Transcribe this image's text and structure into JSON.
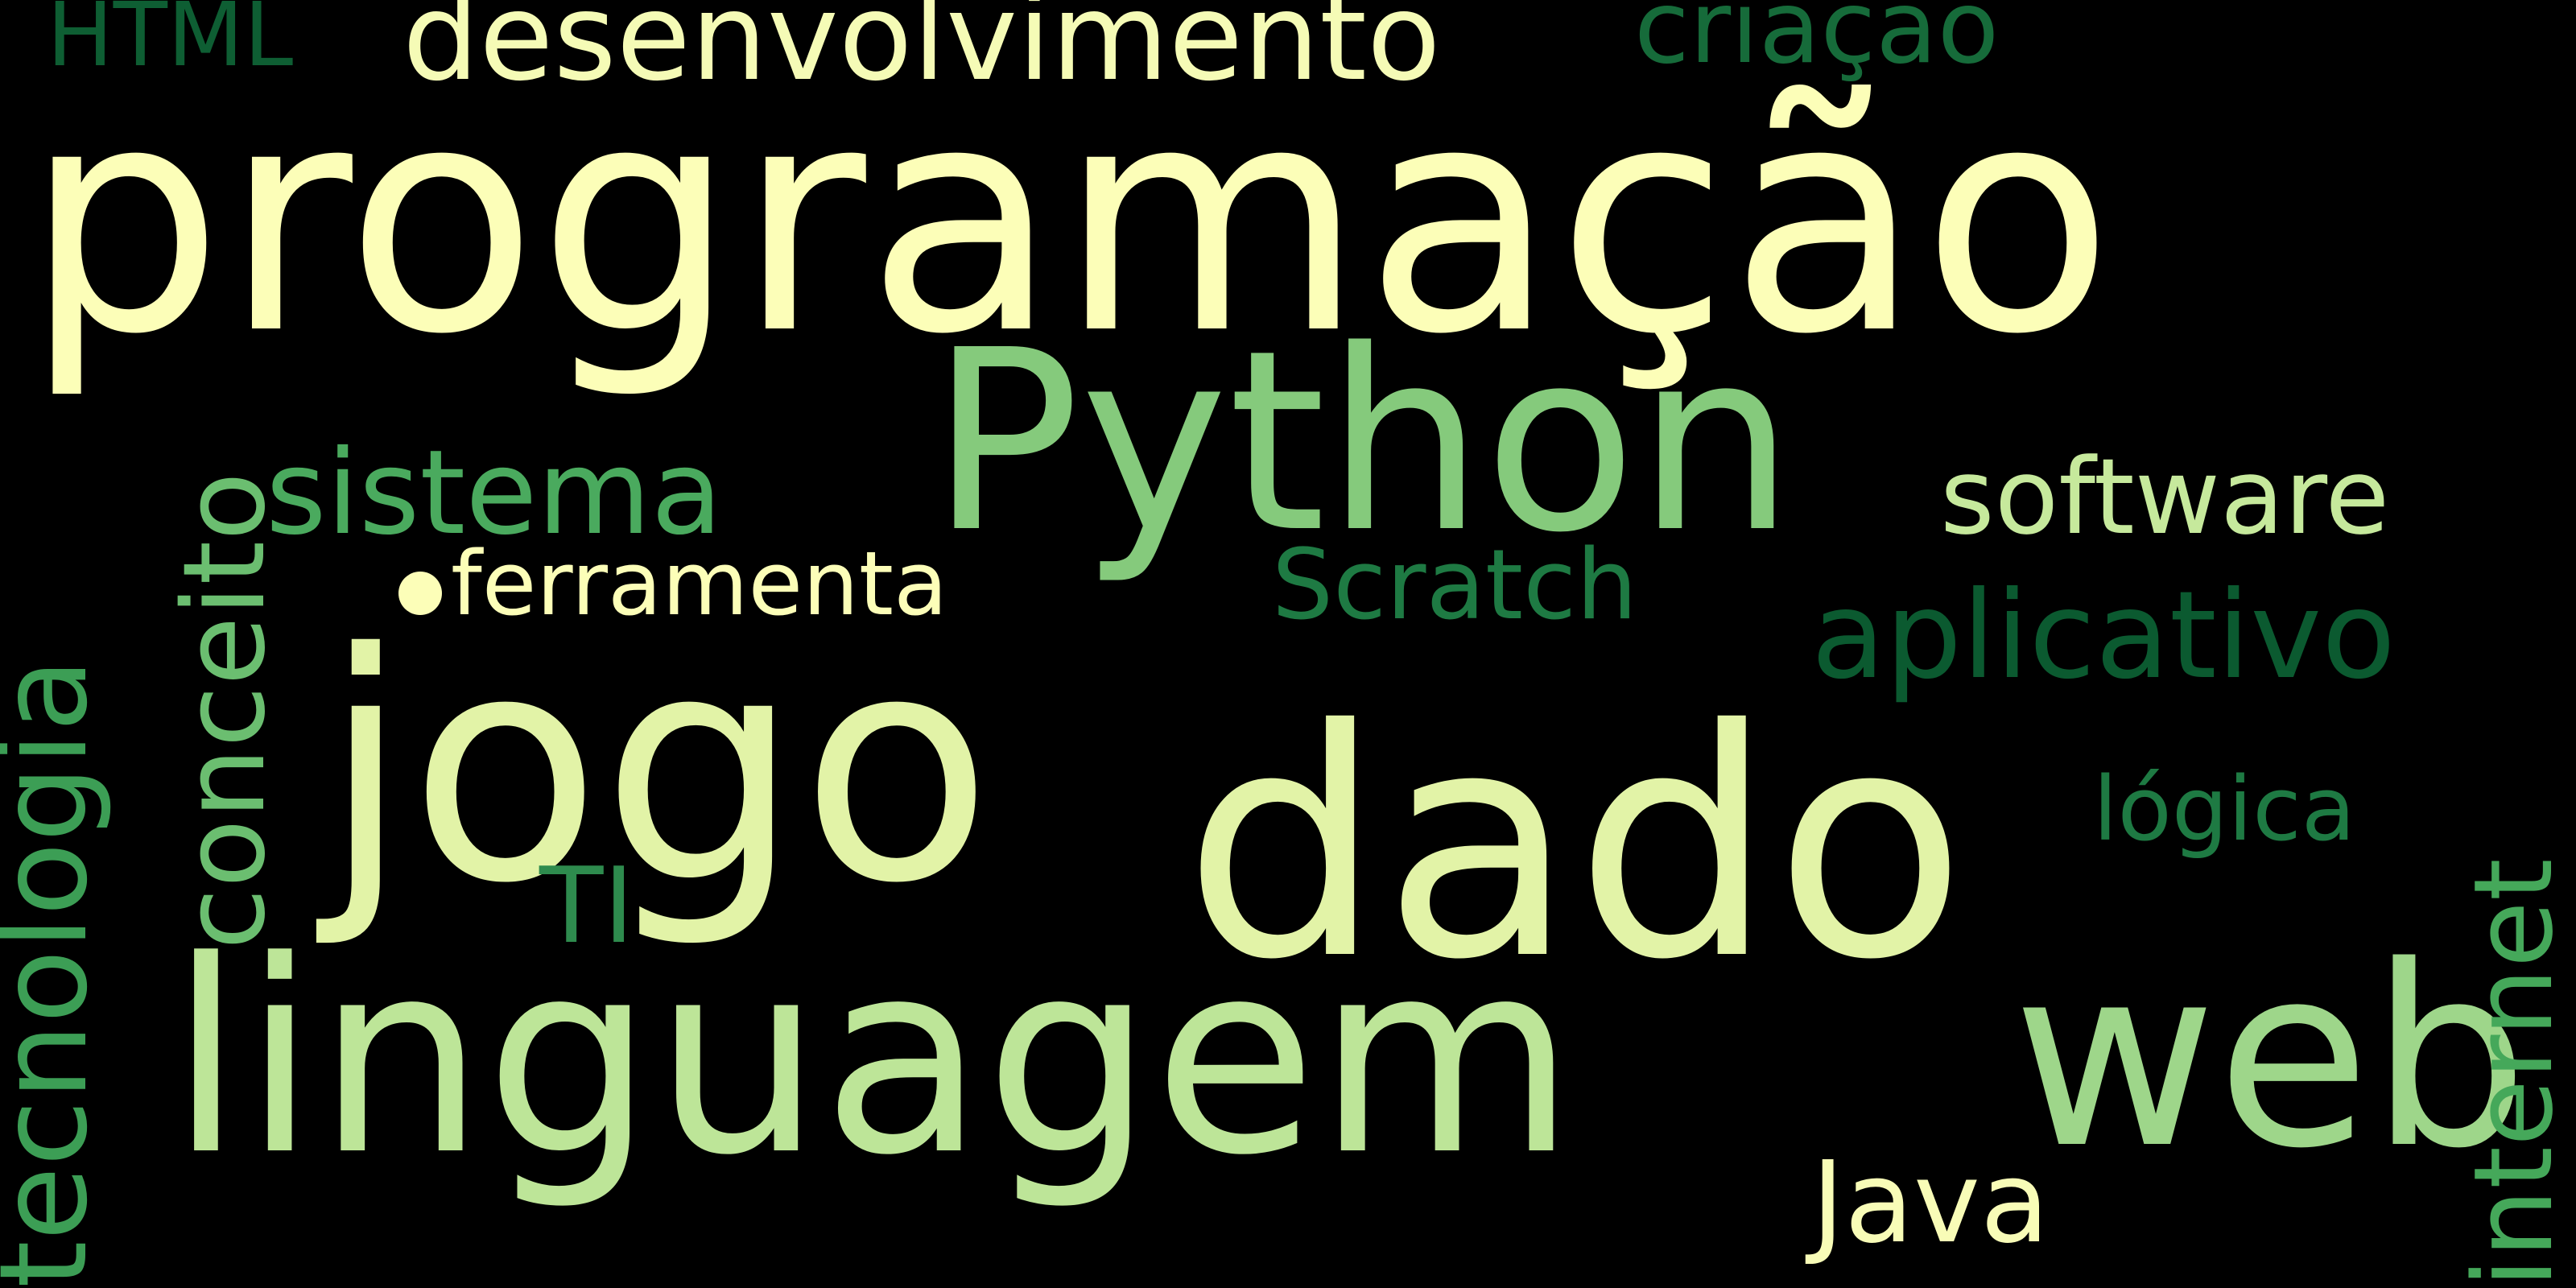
{
  "colors": {
    "background": "#000000",
    "pale_yellow": "#FCFEB8",
    "light_yellow_green": "#E2F3A7",
    "light_green": "#BDE598",
    "mid_green": "#85CA7C",
    "green": "#55B265",
    "deep_green": "#2E8B4E",
    "darker_green": "#1E7A43",
    "darkest_green": "#0E5E33"
  },
  "words": [
    {
      "id": "programacao",
      "text": "programação",
      "color": "#FCFEB8",
      "orientation": "horizontal"
    },
    {
      "id": "python",
      "text": "Python",
      "color": "#85CA7C",
      "orientation": "horizontal"
    },
    {
      "id": "jogo",
      "text": "jogo",
      "color": "#E2F3A7",
      "orientation": "horizontal"
    },
    {
      "id": "dado",
      "text": "dado",
      "color": "#E2F3A7",
      "orientation": "horizontal"
    },
    {
      "id": "linguagem",
      "text": "linguagem",
      "color": "#BDE598",
      "orientation": "horizontal"
    },
    {
      "id": "web",
      "text": "web",
      "color": "#9ED68A",
      "orientation": "horizontal"
    },
    {
      "id": "desenvolvimento",
      "text": "desenvolvimento",
      "color": "#F5FBB6",
      "orientation": "horizontal"
    },
    {
      "id": "criacao",
      "text": "criação",
      "color": "#166B3A",
      "orientation": "horizontal"
    },
    {
      "id": "html",
      "text": "HTML",
      "color": "#0E5E33",
      "orientation": "horizontal"
    },
    {
      "id": "sistema",
      "text": "sistema",
      "color": "#4AAA5E",
      "orientation": "horizontal"
    },
    {
      "id": "software",
      "text": "software",
      "color": "#C6E99C",
      "orientation": "horizontal"
    },
    {
      "id": "ferramenta",
      "text": "ferramenta",
      "color": "#FCFEB8",
      "orientation": "horizontal"
    },
    {
      "id": "scratch",
      "text": "Scratch",
      "color": "#1E7A43",
      "orientation": "horizontal"
    },
    {
      "id": "aplicativo",
      "text": "aplicativo",
      "color": "#0B5A30",
      "orientation": "horizontal"
    },
    {
      "id": "logica",
      "text": "lógica",
      "color": "#1E7A43",
      "orientation": "horizontal"
    },
    {
      "id": "ti",
      "text": "TI",
      "color": "#2E8B4E",
      "orientation": "horizontal"
    },
    {
      "id": "java",
      "text": "Java",
      "color": "#F8FCB7",
      "orientation": "horizontal"
    },
    {
      "id": "tecnologia",
      "text": "tecnologia",
      "color": "#3C9E55",
      "orientation": "vertical"
    },
    {
      "id": "conceito",
      "text": "conceito",
      "color": "#6BBE70",
      "orientation": "vertical"
    },
    {
      "id": "internet",
      "text": "internet",
      "color": "#45A85A",
      "orientation": "vertical"
    }
  ],
  "dot_color": "#FCFEB8"
}
